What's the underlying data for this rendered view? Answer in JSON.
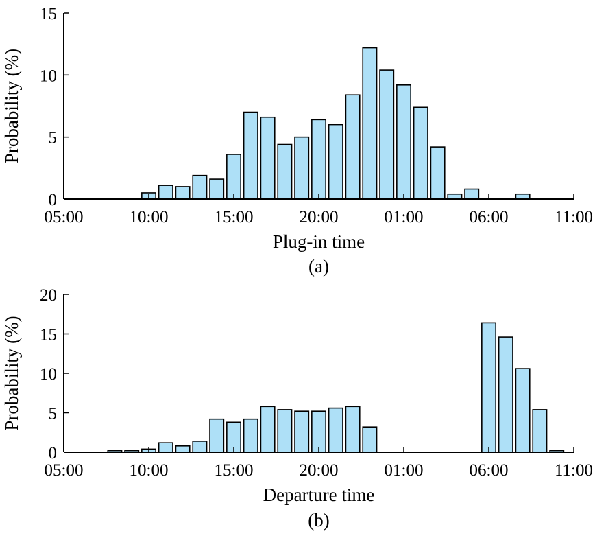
{
  "chart_data": [
    {
      "type": "bar",
      "panel_label": "(a)",
      "xlabel": "Plug-in time",
      "ylabel": "Probability (%)",
      "ylim": [
        0,
        15
      ],
      "yticks": [
        0,
        5,
        10,
        15
      ],
      "xlim": [
        5,
        35
      ],
      "xticks": [
        {
          "value": 5,
          "label": "05:00"
        },
        {
          "value": 10,
          "label": "10:00"
        },
        {
          "value": 15,
          "label": "15:00"
        },
        {
          "value": 20,
          "label": "20:00"
        },
        {
          "value": 25,
          "label": "01:00"
        },
        {
          "value": 30,
          "label": "06:00"
        },
        {
          "value": 35,
          "label": "11:00"
        }
      ],
      "x": [
        10,
        11,
        12,
        13,
        14,
        15,
        16,
        17,
        18,
        19,
        20,
        21,
        22,
        23,
        24,
        25,
        26,
        27,
        28,
        29,
        30,
        31,
        32,
        33,
        34
      ],
      "values": [
        0.5,
        1.1,
        1.0,
        1.9,
        1.6,
        3.6,
        7.0,
        6.6,
        4.4,
        5.0,
        6.4,
        6.0,
        8.4,
        12.2,
        10.4,
        9.2,
        7.4,
        4.2,
        0.4,
        0.8,
        0.0,
        0.0,
        0.4,
        0.0,
        0.0
      ],
      "grid": false
    },
    {
      "type": "bar",
      "panel_label": "(b)",
      "xlabel": "Departure time",
      "ylabel": "Probability (%)",
      "ylim": [
        0,
        20
      ],
      "yticks": [
        0,
        5,
        10,
        15,
        20
      ],
      "xlim": [
        5,
        35
      ],
      "xticks": [
        {
          "value": 5,
          "label": "05:00"
        },
        {
          "value": 10,
          "label": "10:00"
        },
        {
          "value": 15,
          "label": "15:00"
        },
        {
          "value": 20,
          "label": "20:00"
        },
        {
          "value": 25,
          "label": "01:00"
        },
        {
          "value": 30,
          "label": "06:00"
        },
        {
          "value": 35,
          "label": "11:00"
        }
      ],
      "x": [
        8,
        9,
        10,
        11,
        12,
        13,
        14,
        15,
        16,
        17,
        18,
        19,
        20,
        21,
        22,
        23,
        24,
        25,
        26,
        27,
        28,
        29,
        30,
        31,
        32,
        33,
        34
      ],
      "values": [
        0.2,
        0.2,
        0.4,
        1.2,
        0.8,
        1.4,
        4.2,
        3.8,
        4.2,
        5.8,
        5.4,
        5.2,
        5.2,
        5.6,
        5.8,
        3.2,
        0.0,
        0.0,
        0.0,
        0.0,
        0.0,
        0.0,
        16.4,
        14.6,
        10.6,
        5.4,
        0.2
      ],
      "grid": false
    }
  ]
}
